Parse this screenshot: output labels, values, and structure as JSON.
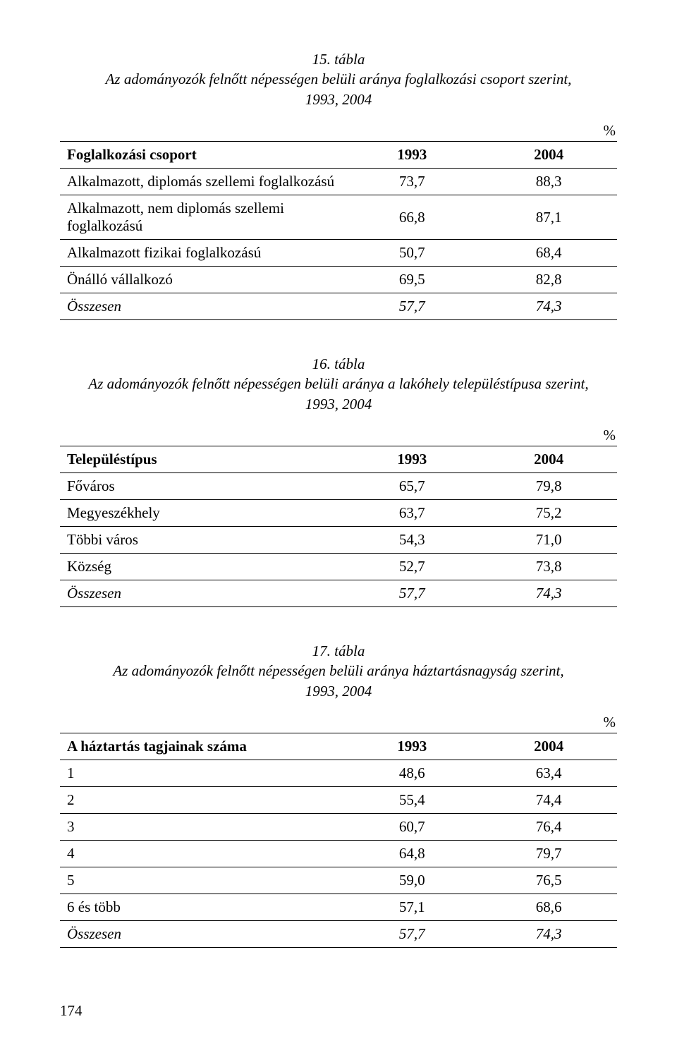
{
  "page_number": "174",
  "percent_symbol": "%",
  "table15": {
    "number": "15. tábla",
    "title_line1": "Az adományozók felnőtt népességen belüli aránya foglalkozási csoport szerint,",
    "title_line2": "1993, 2004",
    "header": {
      "c0": "Foglalkozási csoport",
      "c1": "1993",
      "c2": "2004"
    },
    "rows": [
      {
        "c0": "Alkalmazott, diplomás szellemi foglalkozású",
        "c1": "73,7",
        "c2": "88,3"
      },
      {
        "c0": "Alkalmazott, nem diplomás szellemi foglalkozású",
        "c1": "66,8",
        "c2": "87,1"
      },
      {
        "c0": "Alkalmazott fizikai foglalkozású",
        "c1": "50,7",
        "c2": "68,4"
      },
      {
        "c0": "Önálló vállalkozó",
        "c1": "69,5",
        "c2": "82,8"
      }
    ],
    "total": {
      "c0": "Összesen",
      "c1": "57,7",
      "c2": "74,3"
    }
  },
  "table16": {
    "number": "16. tábla",
    "title_line1": "Az adományozók felnőtt népességen belüli aránya a lakóhely településtípusa szerint,",
    "title_line2": "1993, 2004",
    "header": {
      "c0": "Településtípus",
      "c1": "1993",
      "c2": "2004"
    },
    "rows": [
      {
        "c0": "Főváros",
        "c1": "65,7",
        "c2": "79,8"
      },
      {
        "c0": "Megyeszékhely",
        "c1": "63,7",
        "c2": "75,2"
      },
      {
        "c0": "Többi város",
        "c1": "54,3",
        "c2": "71,0"
      },
      {
        "c0": "Község",
        "c1": "52,7",
        "c2": "73,8"
      }
    ],
    "total": {
      "c0": "Összesen",
      "c1": "57,7",
      "c2": "74,3"
    }
  },
  "table17": {
    "number": "17. tábla",
    "title_line1": "Az adományozók felnőtt népességen belüli aránya háztartásnagyság szerint,",
    "title_line2": "1993, 2004",
    "header": {
      "c0": "A háztartás tagjainak száma",
      "c1": "1993",
      "c2": "2004"
    },
    "rows": [
      {
        "c0": "1",
        "c1": "48,6",
        "c2": "63,4"
      },
      {
        "c0": "2",
        "c1": "55,4",
        "c2": "74,4"
      },
      {
        "c0": "3",
        "c1": "60,7",
        "c2": "76,4"
      },
      {
        "c0": "4",
        "c1": "64,8",
        "c2": "79,7"
      },
      {
        "c0": "5",
        "c1": "59,0",
        "c2": "76,5"
      },
      {
        "c0": "6 és több",
        "c1": "57,1",
        "c2": "68,6"
      }
    ],
    "total": {
      "c0": "Összesen",
      "c1": "57,7",
      "c2": "74,3"
    }
  }
}
